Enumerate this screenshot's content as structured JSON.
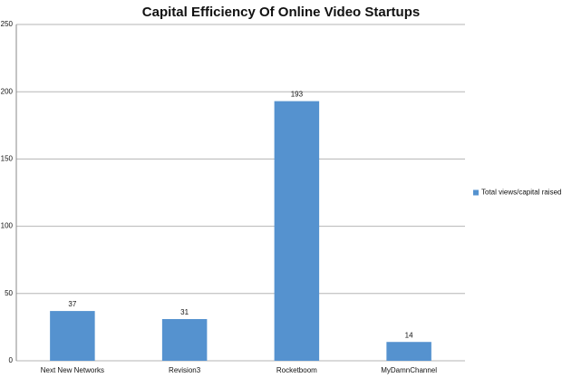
{
  "chart_data": {
    "type": "bar",
    "title": "Capital Efficiency Of Online Video Startups",
    "categories": [
      "Next New Networks",
      "Revision3",
      "Rocketboom",
      "MyDamnChannel"
    ],
    "series": [
      {
        "name": "Total views/capital raised",
        "color": "#5592cf",
        "values": [
          37,
          31,
          193,
          14
        ]
      }
    ],
    "ylim": [
      0,
      250
    ],
    "yticks": [
      0,
      50,
      100,
      150,
      200,
      250
    ],
    "grid": true,
    "legend": "right"
  }
}
